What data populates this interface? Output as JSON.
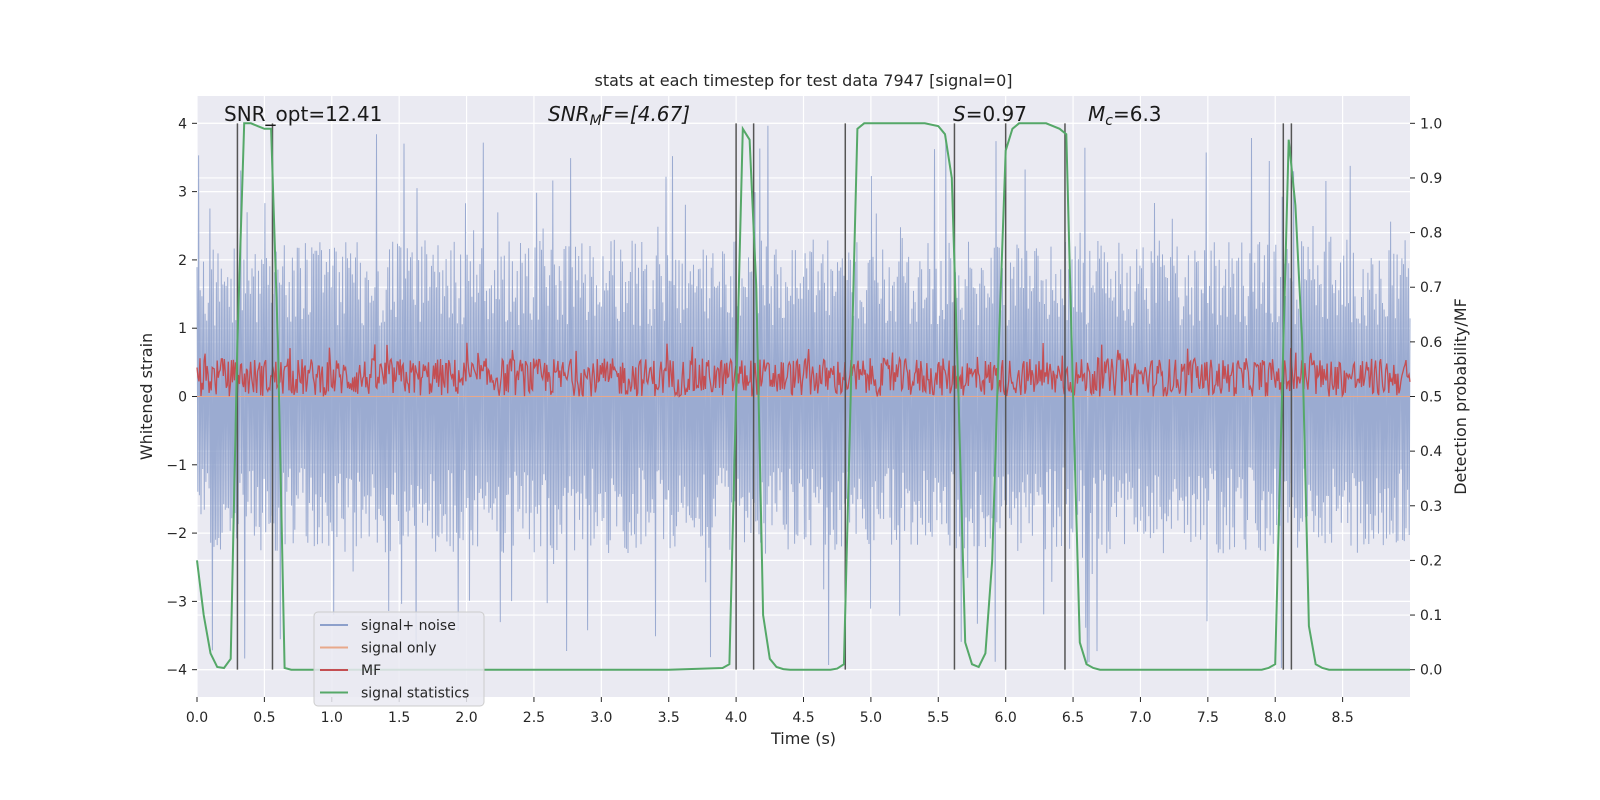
{
  "chart_data": {
    "type": "line",
    "title": "stats at each timestep for test data 7947 [signal=0]",
    "xlabel": "Time (s)",
    "ylabel_left": "Whitened strain",
    "ylabel_right": "Detection probability/MF",
    "xlim": [
      0.0,
      9.0
    ],
    "ylim_left": [
      -4.4,
      4.4
    ],
    "ylim_right": [
      -0.05,
      1.05
    ],
    "grid": true,
    "x_ticks": [
      "0.0",
      "0.5",
      "1.0",
      "1.5",
      "2.0",
      "2.5",
      "3.0",
      "3.5",
      "4.0",
      "4.5",
      "5.0",
      "5.5",
      "6.0",
      "6.5",
      "7.0",
      "7.5",
      "8.0",
      "8.5"
    ],
    "x_tick_values": [
      0.0,
      0.5,
      1.0,
      1.5,
      2.0,
      2.5,
      3.0,
      3.5,
      4.0,
      4.5,
      5.0,
      5.5,
      6.0,
      6.5,
      7.0,
      7.5,
      8.0,
      8.5
    ],
    "y_left_ticks": [
      "4",
      "3",
      "2",
      "1",
      "0",
      "−1",
      "−2",
      "−3",
      "−4"
    ],
    "y_left_tick_values": [
      4,
      3,
      2,
      1,
      0,
      -1,
      -2,
      -3,
      -4
    ],
    "y_right_ticks": [
      "1.0",
      "0.9",
      "0.8",
      "0.7",
      "0.6",
      "0.5",
      "0.4",
      "0.3",
      "0.2",
      "0.1",
      "0.0"
    ],
    "y_right_tick_values": [
      1.0,
      0.9,
      0.8,
      0.7,
      0.6,
      0.5,
      0.4,
      0.3,
      0.2,
      0.1,
      0.0
    ],
    "annotations": {
      "snr_opt": "SNR_opt=12.41",
      "snr_mf_sym": "SNR",
      "snr_mf_sub": "M",
      "snr_mf_tail": "F=[4.67]",
      "s_sym": "S",
      "s_val": "=0.97",
      "mc_sym": "M",
      "mc_sub": "c",
      "mc_val": "=6.3"
    },
    "legend": {
      "location": "lower-left",
      "entries": [
        {
          "label": "signal+ noise",
          "color": "#8da0cb"
        },
        {
          "label": "signal only",
          "color": "#e8a88a"
        },
        {
          "label": "MF",
          "color": "#c44e52"
        },
        {
          "label": "signal statistics",
          "color": "#55a868"
        }
      ]
    },
    "series": [
      {
        "name": "signal+ noise",
        "axis": "left",
        "color": "#8da0cb",
        "style": "dense symmetric noise, envelope approx ±2.3 with spikes to ±4.0",
        "envelope": 2.3,
        "peak": 4.0
      },
      {
        "name": "signal only",
        "axis": "left",
        "color": "#e8a88a",
        "values": "zero (no signal)"
      },
      {
        "name": "MF",
        "axis": "right",
        "color": "#c44e52",
        "style": "noisy band between 0.50 and about 0.58, occasional peaks to 0.60",
        "base": 0.5,
        "mean": 0.535,
        "peak": 0.6
      },
      {
        "name": "signal statistics",
        "axis": "right",
        "color": "#55a868",
        "x": [
          0.0,
          0.05,
          0.1,
          0.15,
          0.2,
          0.25,
          0.3,
          0.35,
          0.4,
          0.45,
          0.5,
          0.55,
          0.6,
          0.65,
          0.7,
          0.8,
          1.0,
          2.0,
          3.0,
          3.5,
          3.9,
          3.95,
          4.0,
          4.05,
          4.1,
          4.15,
          4.2,
          4.25,
          4.3,
          4.35,
          4.4,
          4.5,
          4.6,
          4.7,
          4.75,
          4.8,
          4.85,
          4.9,
          4.95,
          5.0,
          5.2,
          5.4,
          5.5,
          5.55,
          5.6,
          5.65,
          5.7,
          5.75,
          5.8,
          5.85,
          5.9,
          5.95,
          6.0,
          6.05,
          6.1,
          6.15,
          6.2,
          6.3,
          6.4,
          6.45,
          6.5,
          6.55,
          6.6,
          6.65,
          6.7,
          6.8,
          7.0,
          7.5,
          7.9,
          7.95,
          8.0,
          8.05,
          8.1,
          8.15,
          8.2,
          8.25,
          8.3,
          8.35,
          8.4,
          8.5,
          8.7,
          9.0
        ],
        "values": [
          0.2,
          0.1,
          0.03,
          0.005,
          0.003,
          0.02,
          0.6,
          1.0,
          1.0,
          0.995,
          0.99,
          0.99,
          0.6,
          0.003,
          0.0,
          0.0,
          0.0,
          0.0,
          0.0,
          0.0,
          0.003,
          0.01,
          0.5,
          0.99,
          0.97,
          0.7,
          0.1,
          0.02,
          0.005,
          0.001,
          0.0,
          0.0,
          0.0,
          0.0,
          0.002,
          0.01,
          0.5,
          0.99,
          1.0,
          1.0,
          1.0,
          1.0,
          0.995,
          0.98,
          0.9,
          0.5,
          0.05,
          0.01,
          0.005,
          0.03,
          0.2,
          0.6,
          0.95,
          0.99,
          1.0,
          1.0,
          1.0,
          1.0,
          0.99,
          0.98,
          0.5,
          0.05,
          0.01,
          0.003,
          0.0,
          0.0,
          0.0,
          0.0,
          0.0,
          0.003,
          0.01,
          0.5,
          0.97,
          0.85,
          0.6,
          0.08,
          0.01,
          0.003,
          0.0,
          0.0,
          0.0,
          0.0
        ]
      }
    ],
    "vertical_lines_x": [
      0.3,
      0.56,
      4.0,
      4.13,
      4.81,
      5.62,
      6.0,
      6.44,
      8.06,
      8.12
    ]
  }
}
